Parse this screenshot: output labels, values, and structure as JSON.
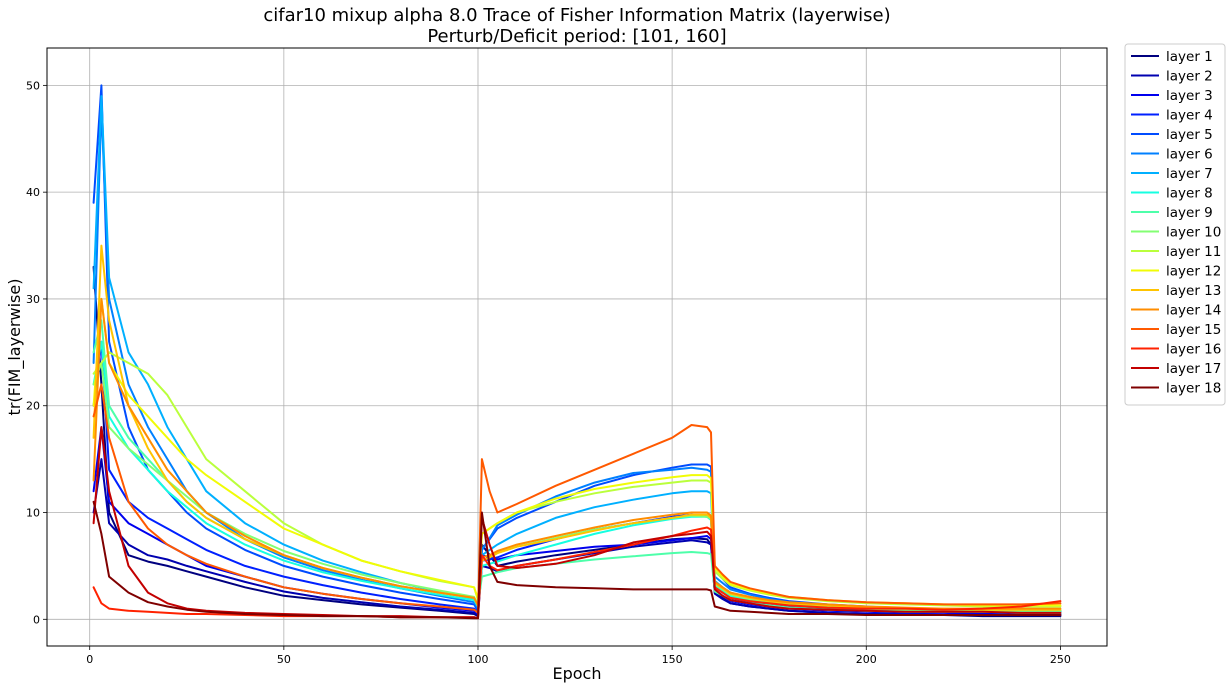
{
  "chart_data": {
    "type": "line",
    "title": "cifar10 mixup alpha 8.0 Trace of Fisher Information Matrix (layerwise)",
    "subtitle": "Perturb/Deficit period: [101, 160]",
    "xlabel": "Epoch",
    "ylabel": "tr(FIM_layerwise)",
    "xlim": [
      -11,
      262
    ],
    "ylim": [
      -2.5,
      53.5
    ],
    "xticks": [
      0,
      50,
      100,
      150,
      200,
      250
    ],
    "yticks": [
      0,
      10,
      20,
      30,
      40,
      50
    ],
    "grid": true,
    "legend_position": "outside-right",
    "x": [
      1,
      3,
      5,
      10,
      15,
      20,
      25,
      30,
      40,
      50,
      60,
      70,
      80,
      90,
      99,
      100,
      101,
      103,
      105,
      110,
      120,
      130,
      140,
      150,
      155,
      159,
      160,
      161,
      163,
      165,
      170,
      175,
      180,
      190,
      200,
      210,
      220,
      230,
      240,
      250
    ],
    "series": [
      {
        "name": "layer 1",
        "color": "#00007f",
        "values": [
          33.0,
          22.0,
          10.0,
          6.0,
          5.4,
          5.0,
          4.5,
          4.0,
          3.0,
          2.2,
          1.8,
          1.4,
          1.1,
          0.8,
          0.5,
          0.3,
          7.0,
          6.0,
          5.0,
          5.4,
          6.0,
          6.5,
          7.0,
          7.5,
          7.6,
          7.5,
          7.0,
          2.5,
          2.0,
          1.5,
          1.2,
          1.0,
          0.8,
          0.6,
          0.5,
          0.4,
          0.4,
          0.3,
          0.3,
          0.3
        ]
      },
      {
        "name": "layer 2",
        "color": "#0000b0",
        "values": [
          10.0,
          15.0,
          9.0,
          7.0,
          6.0,
          5.6,
          5.0,
          4.5,
          3.5,
          2.6,
          2.0,
          1.6,
          1.2,
          0.9,
          0.6,
          0.4,
          5.0,
          4.8,
          4.5,
          5.0,
          5.6,
          6.2,
          6.8,
          7.2,
          7.4,
          7.2,
          7.0,
          2.4,
          1.9,
          1.5,
          1.2,
          1.0,
          0.8,
          0.6,
          0.5,
          0.5,
          0.4,
          0.4,
          0.4,
          0.4
        ]
      },
      {
        "name": "layer 3",
        "color": "#0000ee",
        "values": [
          12.0,
          18.0,
          11.0,
          9.0,
          8.0,
          7.0,
          6.0,
          5.0,
          4.0,
          3.0,
          2.4,
          1.9,
          1.5,
          1.1,
          0.8,
          0.5,
          6.0,
          5.8,
          5.6,
          6.0,
          6.4,
          6.8,
          7.0,
          7.4,
          7.6,
          7.8,
          7.5,
          2.7,
          2.2,
          1.7,
          1.4,
          1.2,
          1.0,
          0.8,
          0.7,
          0.6,
          0.6,
          0.5,
          0.5,
          0.5
        ]
      },
      {
        "name": "layer 4",
        "color": "#0020ff",
        "values": [
          20.0,
          26.0,
          14.0,
          11.0,
          9.5,
          8.5,
          7.5,
          6.5,
          5.0,
          4.0,
          3.2,
          2.5,
          1.9,
          1.4,
          1.0,
          0.6,
          5.5,
          5.6,
          5.8,
          6.5,
          7.5,
          8.4,
          9.0,
          9.6,
          9.8,
          9.6,
          9.4,
          3.0,
          2.5,
          2.0,
          1.6,
          1.4,
          1.2,
          1.0,
          0.9,
          0.8,
          0.7,
          0.7,
          0.7,
          0.7
        ]
      },
      {
        "name": "layer 5",
        "color": "#004cff",
        "values": [
          39.0,
          50.0,
          26.0,
          18.0,
          14.0,
          12.0,
          10.0,
          8.5,
          6.5,
          5.0,
          4.0,
          3.2,
          2.5,
          1.9,
          1.4,
          0.8,
          6.5,
          7.5,
          8.5,
          9.5,
          11.0,
          12.5,
          13.5,
          14.2,
          14.5,
          14.5,
          14.3,
          4.5,
          3.8,
          3.0,
          2.4,
          2.0,
          1.7,
          1.4,
          1.2,
          1.0,
          0.9,
          0.9,
          0.8,
          0.8
        ]
      },
      {
        "name": "layer 6",
        "color": "#0080ff",
        "values": [
          24.0,
          48.0,
          30.0,
          22.0,
          18.0,
          15.0,
          12.0,
          10.0,
          7.5,
          5.8,
          4.6,
          3.7,
          2.9,
          2.2,
          1.6,
          1.0,
          6.5,
          7.6,
          8.8,
          9.8,
          11.5,
          12.8,
          13.7,
          14.0,
          14.2,
          14.0,
          13.8,
          4.0,
          3.4,
          2.8,
          2.3,
          1.9,
          1.6,
          1.3,
          1.1,
          1.0,
          0.9,
          0.9,
          0.8,
          0.8
        ]
      },
      {
        "name": "layer 7",
        "color": "#00b0ff",
        "values": [
          31.0,
          49.0,
          32.0,
          25.0,
          22.0,
          18.0,
          15.0,
          12.0,
          9.0,
          7.0,
          5.5,
          4.4,
          3.4,
          2.6,
          1.9,
          1.2,
          6.0,
          6.5,
          7.0,
          8.0,
          9.5,
          10.5,
          11.2,
          11.8,
          12.0,
          12.0,
          11.8,
          3.6,
          3.0,
          2.5,
          2.0,
          1.7,
          1.4,
          1.2,
          1.0,
          0.9,
          0.8,
          0.8,
          0.7,
          0.7
        ]
      },
      {
        "name": "layer 8",
        "color": "#16ffe1",
        "values": [
          22.0,
          26.0,
          19.0,
          16.0,
          14.0,
          12.0,
          10.5,
          9.0,
          7.0,
          5.5,
          4.4,
          3.6,
          2.9,
          2.3,
          1.8,
          1.2,
          5.0,
          5.2,
          5.4,
          6.0,
          7.0,
          8.0,
          8.8,
          9.4,
          9.6,
          9.6,
          9.3,
          3.2,
          2.7,
          2.2,
          1.8,
          1.5,
          1.3,
          1.1,
          1.0,
          0.9,
          0.8,
          0.8,
          0.8,
          0.8
        ]
      },
      {
        "name": "layer 9",
        "color": "#4dffaa",
        "values": [
          25.0,
          28.0,
          20.0,
          17.0,
          15.0,
          13.0,
          11.0,
          9.5,
          7.5,
          6.0,
          4.8,
          3.9,
          3.1,
          2.5,
          2.0,
          1.3,
          4.0,
          4.2,
          4.4,
          4.8,
          5.2,
          5.6,
          5.9,
          6.2,
          6.3,
          6.2,
          6.1,
          2.6,
          2.2,
          1.8,
          1.5,
          1.3,
          1.1,
          0.9,
          0.8,
          0.7,
          0.7,
          0.7,
          0.6,
          0.6
        ]
      },
      {
        "name": "layer 10",
        "color": "#83ff73",
        "values": [
          22.0,
          24.0,
          18.0,
          16.0,
          14.5,
          13.0,
          11.5,
          10.0,
          8.0,
          6.4,
          5.2,
          4.2,
          3.4,
          2.7,
          2.1,
          1.4,
          5.5,
          5.8,
          6.2,
          6.8,
          7.6,
          8.4,
          9.0,
          9.5,
          9.7,
          9.6,
          9.4,
          3.3,
          2.8,
          2.3,
          1.9,
          1.6,
          1.4,
          1.2,
          1.0,
          0.9,
          0.9,
          0.8,
          0.8,
          0.8
        ]
      },
      {
        "name": "layer 11",
        "color": "#baff3c",
        "values": [
          23.0,
          24.0,
          25.0,
          24.0,
          23.0,
          21.0,
          18.0,
          15.0,
          12.0,
          9.0,
          7.0,
          5.5,
          4.5,
          3.6,
          3.0,
          1.8,
          8.0,
          8.5,
          9.0,
          10.0,
          11.0,
          11.8,
          12.4,
          12.8,
          13.0,
          13.0,
          12.8,
          4.5,
          3.8,
          3.2,
          2.7,
          2.3,
          2.0,
          1.7,
          1.5,
          1.4,
          1.3,
          1.2,
          1.2,
          1.2
        ]
      },
      {
        "name": "layer 12",
        "color": "#f1fc06",
        "values": [
          20.0,
          30.0,
          24.0,
          21.0,
          19.0,
          17.0,
          15.0,
          13.5,
          11.0,
          8.5,
          7.0,
          5.5,
          4.5,
          3.7,
          3.0,
          1.9,
          8.0,
          8.5,
          9.0,
          10.0,
          11.3,
          12.2,
          12.8,
          13.3,
          13.5,
          13.5,
          13.2,
          4.8,
          4.0,
          3.3,
          2.8,
          2.4,
          2.1,
          1.8,
          1.6,
          1.5,
          1.4,
          1.3,
          1.3,
          1.3
        ]
      },
      {
        "name": "layer 13",
        "color": "#ffc400",
        "values": [
          17.0,
          35.0,
          28.0,
          20.0,
          16.0,
          13.0,
          11.0,
          9.5,
          7.5,
          6.0,
          4.8,
          3.9,
          3.1,
          2.5,
          2.0,
          1.3,
          5.5,
          5.8,
          6.2,
          6.8,
          7.5,
          8.3,
          9.0,
          9.5,
          9.8,
          9.8,
          9.5,
          3.4,
          2.9,
          2.4,
          2.0,
          1.7,
          1.5,
          1.3,
          1.1,
          1.0,
          1.0,
          0.9,
          0.9,
          0.9
        ]
      },
      {
        "name": "layer 14",
        "color": "#ff8d00",
        "values": [
          13.0,
          30.0,
          24.0,
          20.0,
          17.0,
          14.0,
          12.0,
          10.0,
          7.8,
          6.0,
          4.8,
          3.9,
          3.1,
          2.5,
          2.0,
          1.3,
          5.8,
          6.0,
          6.4,
          7.0,
          7.8,
          8.6,
          9.3,
          9.8,
          10.0,
          10.0,
          9.7,
          3.5,
          3.0,
          2.5,
          2.1,
          1.8,
          1.6,
          1.4,
          1.2,
          1.1,
          1.0,
          1.0,
          1.0,
          1.0
        ]
      },
      {
        "name": "layer 15",
        "color": "#ff5900",
        "values": [
          19.0,
          22.0,
          17.0,
          11.0,
          8.5,
          7.0,
          6.0,
          5.2,
          4.0,
          3.0,
          2.4,
          1.9,
          1.5,
          1.2,
          0.9,
          0.6,
          15.0,
          12.0,
          10.0,
          10.8,
          12.5,
          14.0,
          15.5,
          17.0,
          18.2,
          18.0,
          17.5,
          5.0,
          4.2,
          3.5,
          2.9,
          2.5,
          2.1,
          1.8,
          1.6,
          1.5,
          1.4,
          1.4,
          1.4,
          1.5
        ]
      },
      {
        "name": "layer 16",
        "color": "#ff2200",
        "values": [
          3.0,
          1.5,
          1.0,
          0.8,
          0.7,
          0.6,
          0.5,
          0.5,
          0.4,
          0.3,
          0.3,
          0.3,
          0.2,
          0.2,
          0.2,
          0.1,
          6.0,
          5.0,
          4.6,
          5.0,
          5.6,
          6.3,
          7.0,
          7.8,
          8.3,
          8.6,
          8.4,
          3.0,
          2.5,
          2.0,
          1.7,
          1.5,
          1.3,
          1.1,
          1.0,
          1.0,
          0.9,
          1.0,
          1.2,
          1.7
        ]
      },
      {
        "name": "layer 17",
        "color": "#c30000",
        "values": [
          9.0,
          18.0,
          12.0,
          5.0,
          2.5,
          1.5,
          1.0,
          0.8,
          0.6,
          0.5,
          0.4,
          0.3,
          0.3,
          0.2,
          0.2,
          0.1,
          9.5,
          7.0,
          5.0,
          4.8,
          5.2,
          6.0,
          7.2,
          7.8,
          8.0,
          8.2,
          7.8,
          2.8,
          2.2,
          1.8,
          1.5,
          1.2,
          1.0,
          0.9,
          0.8,
          0.7,
          0.7,
          0.7,
          0.6,
          0.6
        ]
      },
      {
        "name": "layer 18",
        "color": "#7f0000",
        "values": [
          11.0,
          8.0,
          4.0,
          2.5,
          1.6,
          1.2,
          0.9,
          0.7,
          0.5,
          0.4,
          0.3,
          0.3,
          0.2,
          0.2,
          0.1,
          0.1,
          10.0,
          5.0,
          3.5,
          3.2,
          3.0,
          2.9,
          2.8,
          2.8,
          2.8,
          2.8,
          2.7,
          1.2,
          1.0,
          0.8,
          0.7,
          0.6,
          0.5,
          0.5,
          0.4,
          0.4,
          0.4,
          0.4,
          0.4,
          0.4
        ]
      }
    ]
  }
}
